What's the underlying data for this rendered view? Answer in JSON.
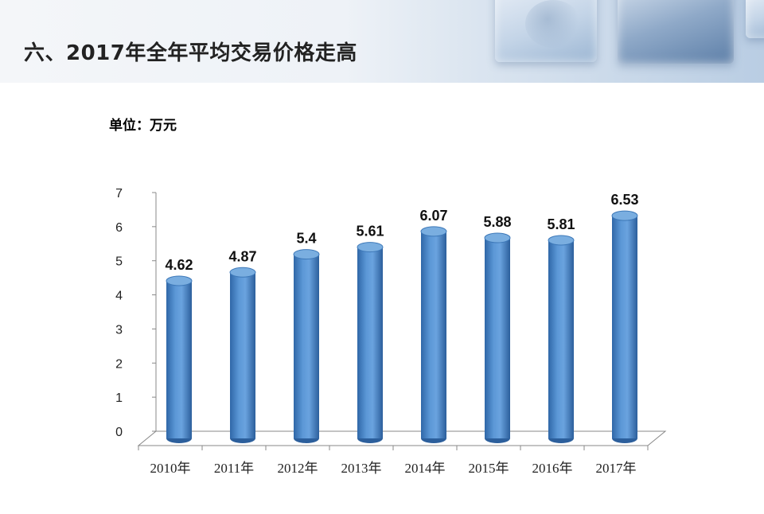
{
  "slide": {
    "title": "六、2017年全年平均交易价格走高",
    "unit_label": "单位：万元"
  },
  "colors": {
    "bar": "#4a86c8",
    "bar_top": "#7aaee0",
    "axis": "#888888"
  },
  "chart_data": {
    "type": "bar",
    "categories": [
      "2010年",
      "2011年",
      "2012年",
      "2013年",
      "2014年",
      "2015年",
      "2016年",
      "2017年"
    ],
    "values": [
      4.62,
      4.87,
      5.4,
      5.61,
      6.07,
      5.88,
      5.81,
      6.53
    ],
    "value_labels": [
      "4.62",
      "4.87",
      "5.4",
      "5.61",
      "6.07",
      "5.88",
      "5.81",
      "6.53"
    ],
    "ylim": [
      0,
      7
    ],
    "yticks": [
      0,
      1,
      2,
      3,
      4,
      5,
      6,
      7
    ],
    "grid": false,
    "legend": "none",
    "style": "3d-cylinder"
  }
}
